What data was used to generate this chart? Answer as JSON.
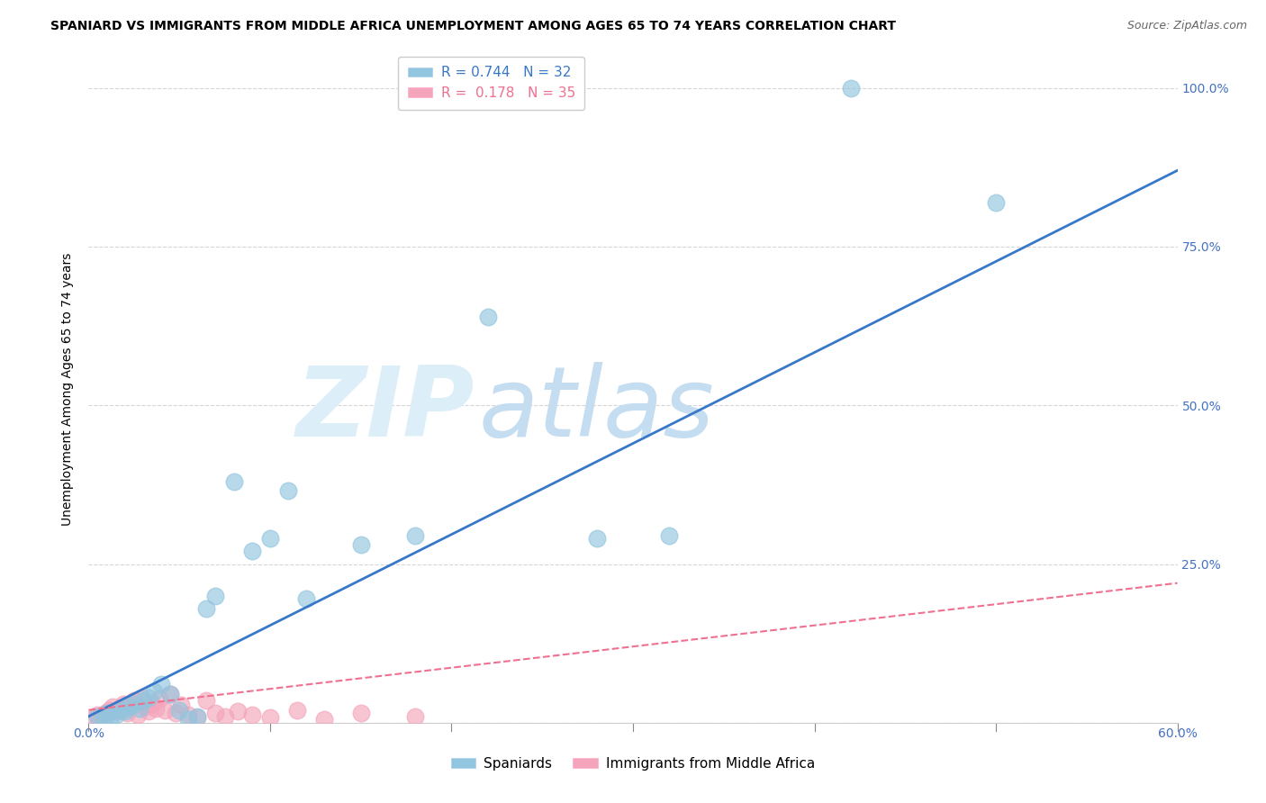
{
  "title": "SPANIARD VS IMMIGRANTS FROM MIDDLE AFRICA UNEMPLOYMENT AMONG AGES 65 TO 74 YEARS CORRELATION CHART",
  "source": "Source: ZipAtlas.com",
  "ylabel": "Unemployment Among Ages 65 to 74 years",
  "xlim": [
    0.0,
    0.6
  ],
  "ylim": [
    0.0,
    1.05
  ],
  "spaniards_x": [
    0.005,
    0.008,
    0.01,
    0.012,
    0.015,
    0.018,
    0.02,
    0.022,
    0.025,
    0.028,
    0.03,
    0.033,
    0.036,
    0.04,
    0.045,
    0.05,
    0.055,
    0.06,
    0.065,
    0.07,
    0.08,
    0.09,
    0.1,
    0.11,
    0.12,
    0.15,
    0.18,
    0.22,
    0.28,
    0.32,
    0.42,
    0.5
  ],
  "spaniards_y": [
    0.01,
    0.005,
    0.015,
    0.008,
    0.012,
    0.02,
    0.018,
    0.025,
    0.03,
    0.022,
    0.035,
    0.04,
    0.05,
    0.06,
    0.045,
    0.02,
    0.005,
    0.01,
    0.18,
    0.2,
    0.38,
    0.27,
    0.29,
    0.365,
    0.195,
    0.28,
    0.295,
    0.64,
    0.29,
    0.295,
    1.0,
    0.82
  ],
  "immigrants_x": [
    0.003,
    0.005,
    0.007,
    0.009,
    0.011,
    0.013,
    0.015,
    0.017,
    0.019,
    0.021,
    0.023,
    0.025,
    0.027,
    0.029,
    0.031,
    0.033,
    0.035,
    0.037,
    0.039,
    0.042,
    0.045,
    0.048,
    0.051,
    0.055,
    0.06,
    0.065,
    0.07,
    0.075,
    0.082,
    0.09,
    0.1,
    0.115,
    0.13,
    0.15,
    0.18
  ],
  "immigrants_y": [
    0.008,
    0.012,
    0.01,
    0.015,
    0.02,
    0.025,
    0.018,
    0.022,
    0.03,
    0.016,
    0.028,
    0.035,
    0.012,
    0.04,
    0.025,
    0.018,
    0.03,
    0.022,
    0.038,
    0.02,
    0.045,
    0.015,
    0.028,
    0.012,
    0.008,
    0.035,
    0.015,
    0.01,
    0.018,
    0.012,
    0.008,
    0.02,
    0.005,
    0.015,
    0.01
  ],
  "spaniards_R": 0.744,
  "spaniards_N": 32,
  "immigrants_R": 0.178,
  "immigrants_N": 35,
  "spaniards_color": "#92c5de",
  "immigrants_color": "#f4a5bb",
  "trendline_spaniards_color": "#3878c8",
  "trendline_immigrants_color": "#f07090",
  "grid_color": "#bbbbbb",
  "axis_label_color": "#4472c4",
  "watermark_zip": "ZIP",
  "watermark_atlas": "atlas",
  "watermark_color_zip": "#dce9f5",
  "watermark_color_atlas": "#c8ddf0",
  "background_color": "#ffffff",
  "title_fontsize": 10,
  "source_fontsize": 9,
  "ylabel_fontsize": 10,
  "tick_fontsize": 10,
  "legend_fontsize": 11
}
